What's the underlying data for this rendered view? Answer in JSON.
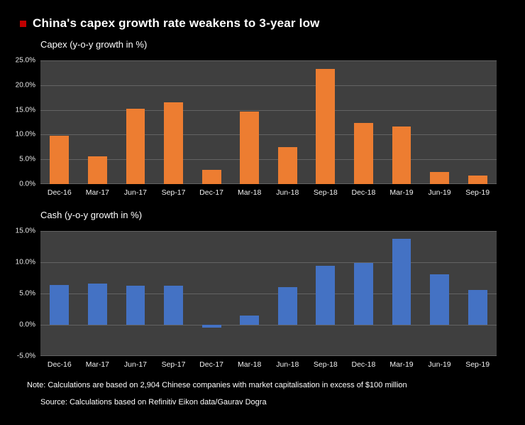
{
  "page": {
    "title": "China's capex growth rate weakens to 3-year low",
    "accent_color": "#c00000",
    "background_color": "#000000",
    "note": "Note: Calculations are based on 2,904 Chinese companies with market capitalisation in excess of $100 million",
    "source": "Source: Calculations based on Refinitiv Eikon data/Gaurav Dogra"
  },
  "chart_data": [
    {
      "type": "bar",
      "title": "Capex (y-o-y growth in %)",
      "categories": [
        "Dec-16",
        "Mar-17",
        "Jun-17",
        "Sep-17",
        "Dec-17",
        "Mar-18",
        "Jun-18",
        "Sep-18",
        "Dec-18",
        "Mar-19",
        "Jun-19",
        "Sep-19"
      ],
      "values": [
        9.7,
        5.6,
        15.3,
        16.5,
        2.9,
        14.7,
        7.5,
        23.3,
        12.4,
        11.7,
        2.5,
        1.7
      ],
      "bar_color": "#ED7D31",
      "plot_background": "#3f3f3f",
      "gridline_color": "#636363",
      "grid": true,
      "legend": "none",
      "ylim": [
        0,
        25
      ],
      "yticks": [
        "25.0%",
        "20.0%",
        "15.0%",
        "10.0%",
        "5.0%",
        "0.0%"
      ],
      "xlabel": "",
      "ylabel": ""
    },
    {
      "type": "bar",
      "title": "Cash (y-o-y growth in %)",
      "categories": [
        "Dec-16",
        "Mar-17",
        "Jun-17",
        "Sep-17",
        "Dec-17",
        "Mar-18",
        "Jun-18",
        "Sep-18",
        "Dec-18",
        "Mar-19",
        "Jun-19",
        "Sep-19"
      ],
      "values": [
        6.4,
        6.6,
        6.2,
        6.2,
        -0.5,
        1.5,
        6.0,
        9.4,
        9.9,
        13.7,
        8.1,
        5.6
      ],
      "bar_color": "#4472C4",
      "plot_background": "#3f3f3f",
      "gridline_color": "#636363",
      "grid": true,
      "legend": "none",
      "ylim": [
        -5,
        15
      ],
      "yticks": [
        "15.0%",
        "10.0%",
        "5.0%",
        "0.0%",
        "-5.0%"
      ],
      "xlabel": "",
      "ylabel": ""
    }
  ]
}
